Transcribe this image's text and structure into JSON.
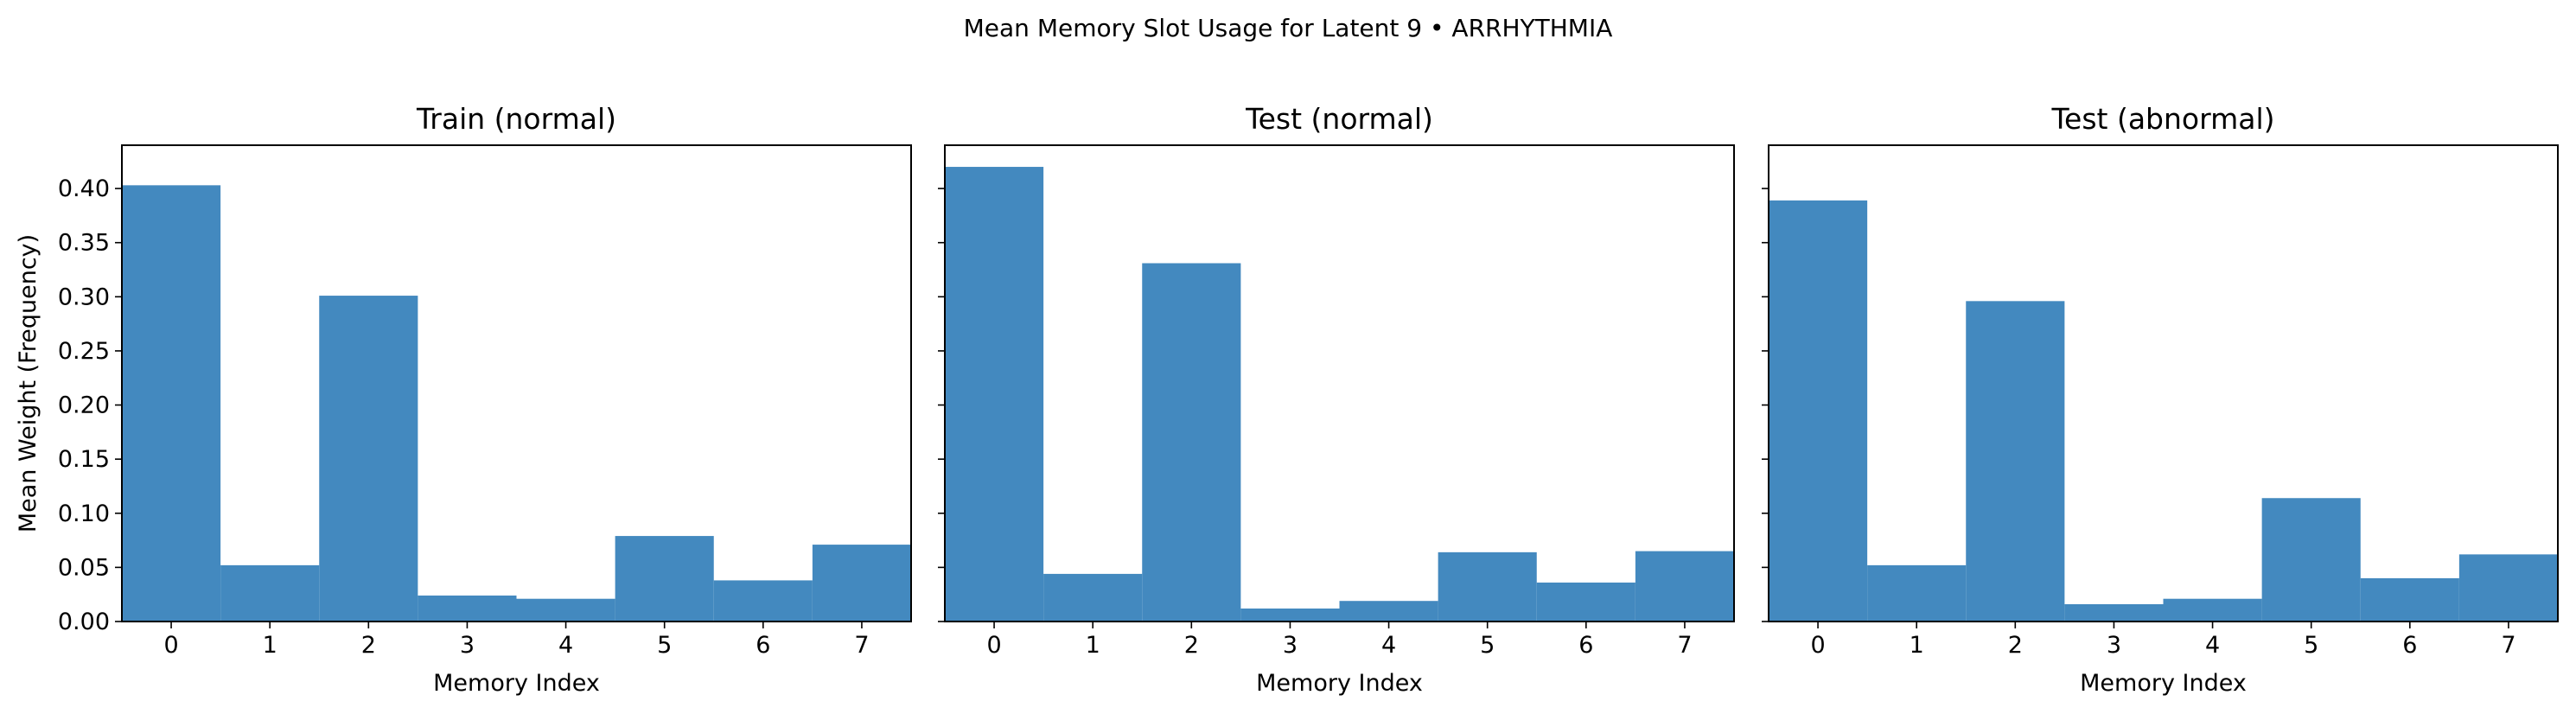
{
  "figure": {
    "suptitle": "Mean Memory Slot Usage for Latent 9 • ARRHYTHMIA"
  },
  "colors": {
    "bar": "#4389bf",
    "axis": "#000000",
    "background": "#ffffff"
  },
  "chart_data": [
    {
      "type": "bar",
      "title": "Train (normal)",
      "xlabel": "Memory Index",
      "ylabel": "Mean Weight (Frequency)",
      "categories": [
        "0",
        "1",
        "2",
        "3",
        "4",
        "5",
        "6",
        "7"
      ],
      "values": [
        0.403,
        0.052,
        0.301,
        0.024,
        0.021,
        0.079,
        0.038,
        0.071
      ],
      "ylim": [
        0,
        0.44
      ],
      "yticks": [
        "0.00",
        "0.05",
        "0.10",
        "0.15",
        "0.20",
        "0.25",
        "0.30",
        "0.35",
        "0.40"
      ],
      "grid": false
    },
    {
      "type": "bar",
      "title": "Test (normal)",
      "xlabel": "Memory Index",
      "ylabel": "",
      "categories": [
        "0",
        "1",
        "2",
        "3",
        "4",
        "5",
        "6",
        "7"
      ],
      "values": [
        0.42,
        0.044,
        0.331,
        0.012,
        0.019,
        0.064,
        0.036,
        0.065
      ],
      "ylim": [
        0,
        0.44
      ],
      "yticks": [],
      "grid": false
    },
    {
      "type": "bar",
      "title": "Test (abnormal)",
      "xlabel": "Memory Index",
      "ylabel": "",
      "categories": [
        "0",
        "1",
        "2",
        "3",
        "4",
        "5",
        "6",
        "7"
      ],
      "values": [
        0.389,
        0.052,
        0.296,
        0.016,
        0.021,
        0.114,
        0.04,
        0.062
      ],
      "ylim": [
        0,
        0.44
      ],
      "yticks": [],
      "grid": false
    }
  ]
}
